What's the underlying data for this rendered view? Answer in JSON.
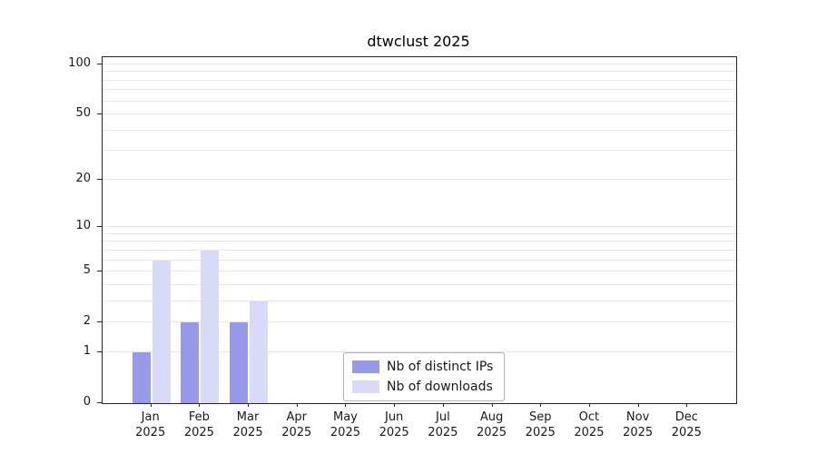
{
  "title": "dtwclust 2025",
  "chart_data": {
    "type": "bar",
    "title": "dtwclust 2025",
    "categories": [
      "Jan",
      "Feb",
      "Mar",
      "Apr",
      "May",
      "Jun",
      "Jul",
      "Aug",
      "Sep",
      "Oct",
      "Nov",
      "Dec"
    ],
    "year_label": "2025",
    "series": [
      {
        "name": "Nb of distinct IPs",
        "color": "#9999ec",
        "values": [
          1,
          2,
          2,
          0,
          0,
          0,
          0,
          0,
          0,
          0,
          0,
          0
        ]
      },
      {
        "name": "Nb of downloads",
        "color": "#d9d9f8",
        "values": [
          6,
          7,
          3,
          0,
          0,
          0,
          0,
          0,
          0,
          0,
          0,
          0
        ]
      }
    ],
    "yticks": [
      0,
      1,
      2,
      5,
      10,
      20,
      50,
      100
    ],
    "minor_gridlines": [
      1,
      2,
      3,
      4,
      5,
      6,
      7,
      8,
      9,
      10,
      20,
      30,
      40,
      50,
      60,
      70,
      80,
      90,
      100
    ],
    "scale": "log1p",
    "ylim": [
      0,
      111
    ],
    "grid": true,
    "legend_position": "lower center"
  },
  "legend": {
    "items": [
      {
        "label": "Nb of distinct IPs",
        "color": "#9999ec"
      },
      {
        "label": "Nb of downloads",
        "color": "#d9d9f8"
      }
    ]
  }
}
